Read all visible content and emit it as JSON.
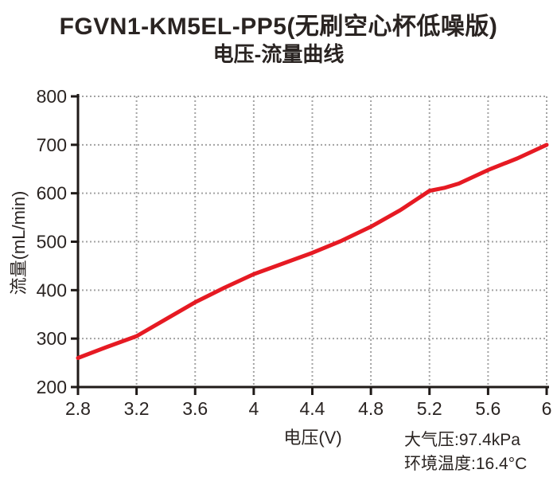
{
  "title": "FGVN1-KM5EL-PP5(无刷空心杯低噪版)",
  "subtitle": "电压-流量曲线",
  "conditions": {
    "pressure": "大气压:97.4kPa",
    "temperature": "环境温度:16.4°C"
  },
  "colors": {
    "curve": "#e61a23",
    "axis": "#1f1a18",
    "grid": "#a3a3a3",
    "text": "#2a2422",
    "background": "#ffffff"
  },
  "chart_data": {
    "type": "line",
    "title": "FGVN1-KM5EL-PP5(无刷空心杯低噪版) 电压-流量曲线",
    "xlabel": "电压(V)",
    "ylabel": "流量(mL/min)",
    "xlim": [
      2.8,
      6.0
    ],
    "ylim": [
      200,
      800
    ],
    "x_ticks": [
      2.8,
      3.2,
      3.6,
      4.0,
      4.4,
      4.8,
      5.2,
      5.6,
      6.0
    ],
    "x_tick_labels": [
      "2.8",
      "3.2",
      "3.6",
      "4",
      "4.4",
      "4.8",
      "5.2",
      "5.6",
      "6"
    ],
    "y_ticks": [
      200,
      300,
      400,
      500,
      600,
      700,
      800
    ],
    "y_tick_labels": [
      "200",
      "300",
      "400",
      "500",
      "600",
      "700",
      "800"
    ],
    "grid": true,
    "grid_style": "dotted",
    "legend": "none",
    "series": [
      {
        "name": "流量",
        "color": "#e61a23",
        "x": [
          2.8,
          3.0,
          3.2,
          3.4,
          3.6,
          3.8,
          4.0,
          4.2,
          4.4,
          4.6,
          4.8,
          5.0,
          5.1,
          5.2,
          5.3,
          5.4,
          5.5,
          5.6,
          5.8,
          6.0
        ],
        "y": [
          260,
          283,
          305,
          340,
          375,
          405,
          433,
          455,
          477,
          502,
          531,
          565,
          585,
          605,
          611,
          620,
          634,
          648,
          672,
          700
        ]
      }
    ]
  }
}
